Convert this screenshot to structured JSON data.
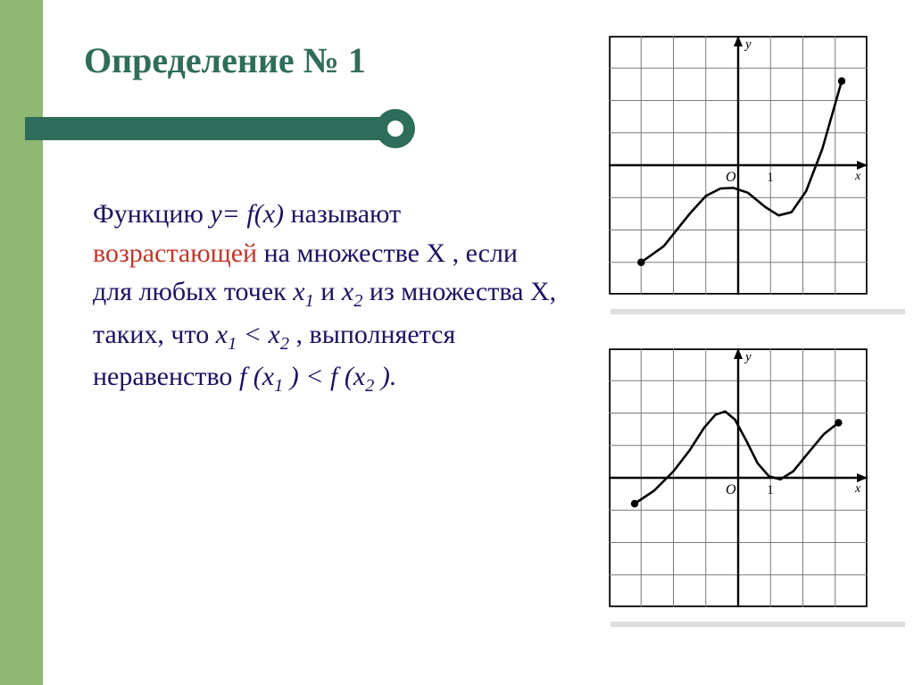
{
  "title": "Определение № 1",
  "accent_color": "#2f6d5b",
  "left_bar_color": "#8fb673",
  "body": {
    "lead": "Функцию ",
    "func": "у= f(x)",
    "t1": " называют ",
    "increasing": "возрастающей",
    "t2": " на множестве X , если для любых точек ",
    "x1": "x",
    "s1": "1",
    "and": " и ",
    "x2": "x",
    "s2": "2",
    "t3": " из множества X, таких, что ",
    "ineq1_a": "x",
    "ineq1_s1": "1",
    "ineq1_mid": " < x",
    "ineq1_s2": "2",
    "t4": ", выполняется неравенство ",
    "rhs": "f (x",
    "rhs_s1": "1",
    "rhs_mid": ") < f  (x",
    "rhs_s2": "2",
    "rhs_end": ")."
  },
  "graph_top": {
    "type": "line",
    "x_range": [
      -4,
      4
    ],
    "y_range": [
      -4,
      4
    ],
    "grid_color": "#7a7a7a",
    "axis_color": "#000000",
    "curve_color": "#000000",
    "curve_width": 2.6,
    "origin_label": "O",
    "x_unit_label": "1",
    "y_axis_label": "у",
    "x_axis_label": "x",
    "points": [
      [
        -3.0,
        -3.0
      ],
      [
        -2.3,
        -2.5
      ],
      [
        -1.5,
        -1.5
      ],
      [
        -1.0,
        -0.95
      ],
      [
        -0.55,
        -0.72
      ],
      [
        -0.15,
        -0.7
      ],
      [
        0.3,
        -0.85
      ],
      [
        0.85,
        -1.3
      ],
      [
        1.25,
        -1.55
      ],
      [
        1.65,
        -1.45
      ],
      [
        2.1,
        -0.8
      ],
      [
        2.6,
        0.5
      ],
      [
        3.0,
        1.9
      ],
      [
        3.2,
        2.6
      ]
    ],
    "endpoints": [
      [
        -3.0,
        -3.0
      ],
      [
        3.2,
        2.6
      ]
    ],
    "endpoint_radius": 4.2
  },
  "graph_bottom": {
    "type": "line",
    "x_range": [
      -4,
      4
    ],
    "y_range": [
      -4,
      4
    ],
    "grid_color": "#7a7a7a",
    "axis_color": "#000000",
    "curve_color": "#000000",
    "curve_width": 2.6,
    "origin_label": "O",
    "x_unit_label": "1",
    "y_axis_label": "у",
    "x_axis_label": "x",
    "points": [
      [
        -3.2,
        -0.8
      ],
      [
        -2.6,
        -0.4
      ],
      [
        -2.0,
        0.2
      ],
      [
        -1.5,
        0.85
      ],
      [
        -1.05,
        1.55
      ],
      [
        -0.7,
        1.95
      ],
      [
        -0.4,
        2.05
      ],
      [
        -0.1,
        1.8
      ],
      [
        0.25,
        1.15
      ],
      [
        0.6,
        0.45
      ],
      [
        0.95,
        0.05
      ],
      [
        1.3,
        -0.05
      ],
      [
        1.7,
        0.2
      ],
      [
        2.15,
        0.75
      ],
      [
        2.65,
        1.35
      ],
      [
        3.1,
        1.7
      ]
    ],
    "endpoints": [
      [
        -3.2,
        -0.8
      ],
      [
        3.1,
        1.7
      ]
    ],
    "endpoint_radius": 4.2
  }
}
